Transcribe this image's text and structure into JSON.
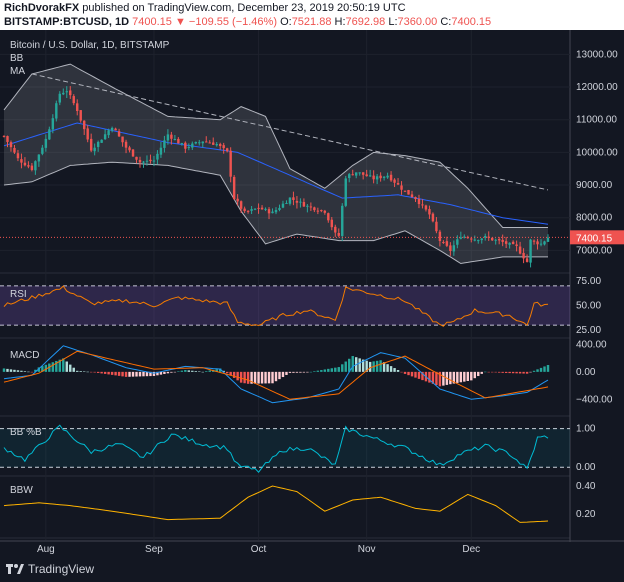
{
  "header": {
    "author": "RichDvorakFX",
    "published_text": "published on TradingView.com, December 23, 2019 20:50:19 UTC",
    "symbol": "BITSTAMP:BTCUSD, 1D",
    "last": "7400.15",
    "change_arrow": "▼",
    "change": "−109.55 (−1.46%)",
    "o_label": "O:",
    "o": "7521.88",
    "h_label": "H:",
    "h": "7692.98",
    "l_label": "L:",
    "l": "7360.00",
    "c_label": "C:",
    "c": "7400.15"
  },
  "legend": {
    "title": "Bitcoin / U.S. Dollar, 1D, BITSTAMP",
    "bb": "BB",
    "ma": "MA"
  },
  "panes": {
    "rsi": "RSI",
    "macd": "MACD",
    "bbpct": "BB %B",
    "bbw": "BBW"
  },
  "footer": {
    "brand": "TradingView",
    "logo_icon": "tradingview-logo-icon"
  },
  "colors": {
    "up": "#26a69a",
    "down": "#ef5350",
    "bb": "#b2b5be",
    "ma": "#2962ff",
    "rsi": "#f57c00",
    "rsi_band": "#7e57c2",
    "macd": "#2196f3",
    "signal": "#ff6d00",
    "bbpct": "#00bcd4",
    "bbw": "#ffb300"
  },
  "chart_data": {
    "type": "candlestick",
    "x_range": [
      "2019-07-20",
      "2019-12-23"
    ],
    "x_ticks": [
      {
        "label": "Aug",
        "date": "2019-08-01"
      },
      {
        "label": "Sep",
        "date": "2019-09-01"
      },
      {
        "label": "Oct",
        "date": "2019-10-01"
      },
      {
        "label": "Nov",
        "date": "2019-11-01"
      },
      {
        "label": "Dec",
        "date": "2019-12-01"
      }
    ],
    "price": {
      "ylim": [
        6400,
        13500
      ],
      "y_ticks": [
        {
          "label": "13000.00",
          "value": 13000
        },
        {
          "label": "12000.00",
          "value": 12000
        },
        {
          "label": "11000.00",
          "value": 11000
        },
        {
          "label": "10000.00",
          "value": 10000
        },
        {
          "label": "9000.00",
          "value": 9000
        },
        {
          "label": "8000.00",
          "value": 8000
        },
        {
          "label": "7000.00",
          "value": 7000
        }
      ],
      "last_label": "7400.15",
      "last_value": 7400.15,
      "close_anchors": [
        [
          "2019-07-20",
          10500
        ],
        [
          "2019-07-24",
          9800
        ],
        [
          "2019-07-28",
          9500
        ],
        [
          "2019-08-01",
          10400
        ],
        [
          "2019-08-05",
          11800
        ],
        [
          "2019-08-07",
          11900
        ],
        [
          "2019-08-10",
          11300
        ],
        [
          "2019-08-14",
          10100
        ],
        [
          "2019-08-16",
          10300
        ],
        [
          "2019-08-20",
          10800
        ],
        [
          "2019-08-24",
          10150
        ],
        [
          "2019-08-28",
          9700
        ],
        [
          "2019-09-01",
          9750
        ],
        [
          "2019-09-05",
          10550
        ],
        [
          "2019-09-10",
          10150
        ],
        [
          "2019-09-15",
          10350
        ],
        [
          "2019-09-19",
          10250
        ],
        [
          "2019-09-22",
          10000
        ],
        [
          "2019-09-24",
          8600
        ],
        [
          "2019-09-27",
          8150
        ],
        [
          "2019-10-01",
          8300
        ],
        [
          "2019-10-05",
          8150
        ],
        [
          "2019-10-10",
          8600
        ],
        [
          "2019-10-15",
          8350
        ],
        [
          "2019-10-20",
          8200
        ],
        [
          "2019-10-23",
          7500
        ],
        [
          "2019-10-24",
          7450
        ],
        [
          "2019-10-26",
          9250
        ],
        [
          "2019-10-29",
          9400
        ],
        [
          "2019-11-03",
          9200
        ],
        [
          "2019-11-07",
          9300
        ],
        [
          "2019-11-12",
          8800
        ],
        [
          "2019-11-15",
          8600
        ],
        [
          "2019-11-19",
          8100
        ],
        [
          "2019-11-22",
          7300
        ],
        [
          "2019-11-25",
          7000
        ],
        [
          "2019-11-28",
          7450
        ],
        [
          "2019-12-02",
          7350
        ],
        [
          "2019-12-05",
          7400
        ],
        [
          "2019-12-10",
          7250
        ],
        [
          "2019-12-14",
          7100
        ],
        [
          "2019-12-17",
          6650
        ],
        [
          "2019-12-18",
          7300
        ],
        [
          "2019-12-21",
          7200
        ],
        [
          "2019-12-23",
          7400
        ]
      ],
      "ma_anchors": [
        [
          "2019-07-20",
          10200
        ],
        [
          "2019-08-10",
          10900
        ],
        [
          "2019-09-05",
          10300
        ],
        [
          "2019-09-25",
          10000
        ],
        [
          "2019-10-10",
          9300
        ],
        [
          "2019-10-25",
          8600
        ],
        [
          "2019-11-10",
          8700
        ],
        [
          "2019-11-25",
          8400
        ],
        [
          "2019-12-10",
          8000
        ],
        [
          "2019-12-23",
          7800
        ]
      ],
      "bb_upper_anchors": [
        [
          "2019-07-20",
          11300
        ],
        [
          "2019-07-28",
          12400
        ],
        [
          "2019-08-08",
          12700
        ],
        [
          "2019-08-20",
          12000
        ],
        [
          "2019-09-05",
          11100
        ],
        [
          "2019-09-20",
          11000
        ],
        [
          "2019-09-26",
          11400
        ],
        [
          "2019-10-03",
          11100
        ],
        [
          "2019-10-10",
          9500
        ],
        [
          "2019-10-20",
          8900
        ],
        [
          "2019-10-28",
          9600
        ],
        [
          "2019-11-03",
          10000
        ],
        [
          "2019-11-12",
          9900
        ],
        [
          "2019-11-22",
          9700
        ],
        [
          "2019-11-30",
          8900
        ],
        [
          "2019-12-10",
          7700
        ],
        [
          "2019-12-23",
          7700
        ]
      ],
      "bb_lower_anchors": [
        [
          "2019-07-20",
          9000
        ],
        [
          "2019-07-28",
          9100
        ],
        [
          "2019-08-08",
          9600
        ],
        [
          "2019-08-20",
          9700
        ],
        [
          "2019-09-05",
          9600
        ],
        [
          "2019-09-20",
          9300
        ],
        [
          "2019-09-26",
          8200
        ],
        [
          "2019-10-03",
          7200
        ],
        [
          "2019-10-12",
          7500
        ],
        [
          "2019-10-24",
          7300
        ],
        [
          "2019-11-03",
          7300
        ],
        [
          "2019-11-12",
          7600
        ],
        [
          "2019-11-22",
          7000
        ],
        [
          "2019-11-28",
          6600
        ],
        [
          "2019-12-10",
          6800
        ],
        [
          "2019-12-23",
          6800
        ]
      ],
      "trendline": [
        [
          "2019-07-28",
          12400
        ],
        [
          "2019-12-23",
          8850
        ]
      ]
    },
    "rsi": {
      "ylim": [
        20,
        80
      ],
      "y_ticks": [
        {
          "label": "75.00",
          "value": 75
        },
        {
          "label": "50.00",
          "value": 50
        },
        {
          "label": "25.00",
          "value": 25
        }
      ],
      "band": [
        30,
        70
      ],
      "anchors": [
        [
          "2019-07-20",
          50
        ],
        [
          "2019-07-28",
          58
        ],
        [
          "2019-08-06",
          68
        ],
        [
          "2019-08-14",
          52
        ],
        [
          "2019-08-24",
          55
        ],
        [
          "2019-09-01",
          50
        ],
        [
          "2019-09-08",
          58
        ],
        [
          "2019-09-15",
          55
        ],
        [
          "2019-09-22",
          52
        ],
        [
          "2019-09-25",
          33
        ],
        [
          "2019-10-01",
          30
        ],
        [
          "2019-10-08",
          40
        ],
        [
          "2019-10-15",
          45
        ],
        [
          "2019-10-23",
          35
        ],
        [
          "2019-10-26",
          68
        ],
        [
          "2019-11-03",
          62
        ],
        [
          "2019-11-12",
          55
        ],
        [
          "2019-11-22",
          30
        ],
        [
          "2019-11-26",
          33
        ],
        [
          "2019-12-02",
          45
        ],
        [
          "2019-12-12",
          40
        ],
        [
          "2019-12-17",
          30
        ],
        [
          "2019-12-19",
          52
        ],
        [
          "2019-12-23",
          50
        ]
      ]
    },
    "macd": {
      "ylim": [
        -600,
        450
      ],
      "y_ticks": [
        {
          "label": "400.00",
          "value": 400
        },
        {
          "label": "0.00",
          "value": 0
        },
        {
          "label": "−400.00",
          "value": -400
        }
      ],
      "macd_anchors": [
        [
          "2019-07-20",
          -100
        ],
        [
          "2019-07-28",
          -50
        ],
        [
          "2019-08-06",
          380
        ],
        [
          "2019-08-14",
          250
        ],
        [
          "2019-08-24",
          60
        ],
        [
          "2019-09-01",
          -20
        ],
        [
          "2019-09-10",
          80
        ],
        [
          "2019-09-20",
          40
        ],
        [
          "2019-09-26",
          -250
        ],
        [
          "2019-10-05",
          -450
        ],
        [
          "2019-10-15",
          -380
        ],
        [
          "2019-10-24",
          -250
        ],
        [
          "2019-10-28",
          80
        ],
        [
          "2019-11-05",
          280
        ],
        [
          "2019-11-12",
          200
        ],
        [
          "2019-11-22",
          -250
        ],
        [
          "2019-12-01",
          -400
        ],
        [
          "2019-12-10",
          -350
        ],
        [
          "2019-12-17",
          -300
        ],
        [
          "2019-12-23",
          -120
        ]
      ],
      "signal_anchors": [
        [
          "2019-07-20",
          -150
        ],
        [
          "2019-07-30",
          -20
        ],
        [
          "2019-08-10",
          300
        ],
        [
          "2019-08-20",
          180
        ],
        [
          "2019-09-01",
          40
        ],
        [
          "2019-09-15",
          60
        ],
        [
          "2019-09-28",
          -120
        ],
        [
          "2019-10-10",
          -400
        ],
        [
          "2019-10-24",
          -320
        ],
        [
          "2019-11-02",
          60
        ],
        [
          "2019-11-12",
          230
        ],
        [
          "2019-11-25",
          -120
        ],
        [
          "2019-12-05",
          -380
        ],
        [
          "2019-12-23",
          -220
        ]
      ]
    },
    "bbpct": {
      "ylim": [
        -0.15,
        1.25
      ],
      "y_ticks": [
        {
          "label": "1.00",
          "value": 1
        },
        {
          "label": "0.00",
          "value": 0
        }
      ],
      "anchors": [
        [
          "2019-07-20",
          0.5
        ],
        [
          "2019-07-26",
          0.2
        ],
        [
          "2019-08-05",
          1.05
        ],
        [
          "2019-08-14",
          0.4
        ],
        [
          "2019-08-22",
          0.6
        ],
        [
          "2019-08-29",
          0.25
        ],
        [
          "2019-09-06",
          0.85
        ],
        [
          "2019-09-15",
          0.6
        ],
        [
          "2019-09-22",
          0.5
        ],
        [
          "2019-09-25",
          0.05
        ],
        [
          "2019-10-01",
          -0.1
        ],
        [
          "2019-10-08",
          0.45
        ],
        [
          "2019-10-15",
          0.5
        ],
        [
          "2019-10-23",
          0.05
        ],
        [
          "2019-10-26",
          1.0
        ],
        [
          "2019-11-03",
          0.75
        ],
        [
          "2019-11-12",
          0.5
        ],
        [
          "2019-11-22",
          0.05
        ],
        [
          "2019-11-28",
          0.35
        ],
        [
          "2019-12-05",
          0.55
        ],
        [
          "2019-12-12",
          0.35
        ],
        [
          "2019-12-17",
          -0.05
        ],
        [
          "2019-12-20",
          0.75
        ],
        [
          "2019-12-23",
          0.8
        ]
      ]
    },
    "bbw": {
      "ylim": [
        0.05,
        0.45
      ],
      "y_ticks": [
        {
          "label": "0.40",
          "value": 0.4
        },
        {
          "label": "0.20",
          "value": 0.2
        }
      ],
      "anchors": [
        [
          "2019-07-20",
          0.26
        ],
        [
          "2019-07-30",
          0.28
        ],
        [
          "2019-08-08",
          0.26
        ],
        [
          "2019-08-20",
          0.22
        ],
        [
          "2019-09-05",
          0.16
        ],
        [
          "2019-09-20",
          0.17
        ],
        [
          "2019-09-28",
          0.32
        ],
        [
          "2019-10-05",
          0.4
        ],
        [
          "2019-10-12",
          0.36
        ],
        [
          "2019-10-20",
          0.22
        ],
        [
          "2019-10-28",
          0.3
        ],
        [
          "2019-11-05",
          0.32
        ],
        [
          "2019-11-15",
          0.24
        ],
        [
          "2019-11-22",
          0.22
        ],
        [
          "2019-11-30",
          0.34
        ],
        [
          "2019-12-08",
          0.26
        ],
        [
          "2019-12-15",
          0.14
        ],
        [
          "2019-12-23",
          0.15
        ]
      ]
    }
  }
}
